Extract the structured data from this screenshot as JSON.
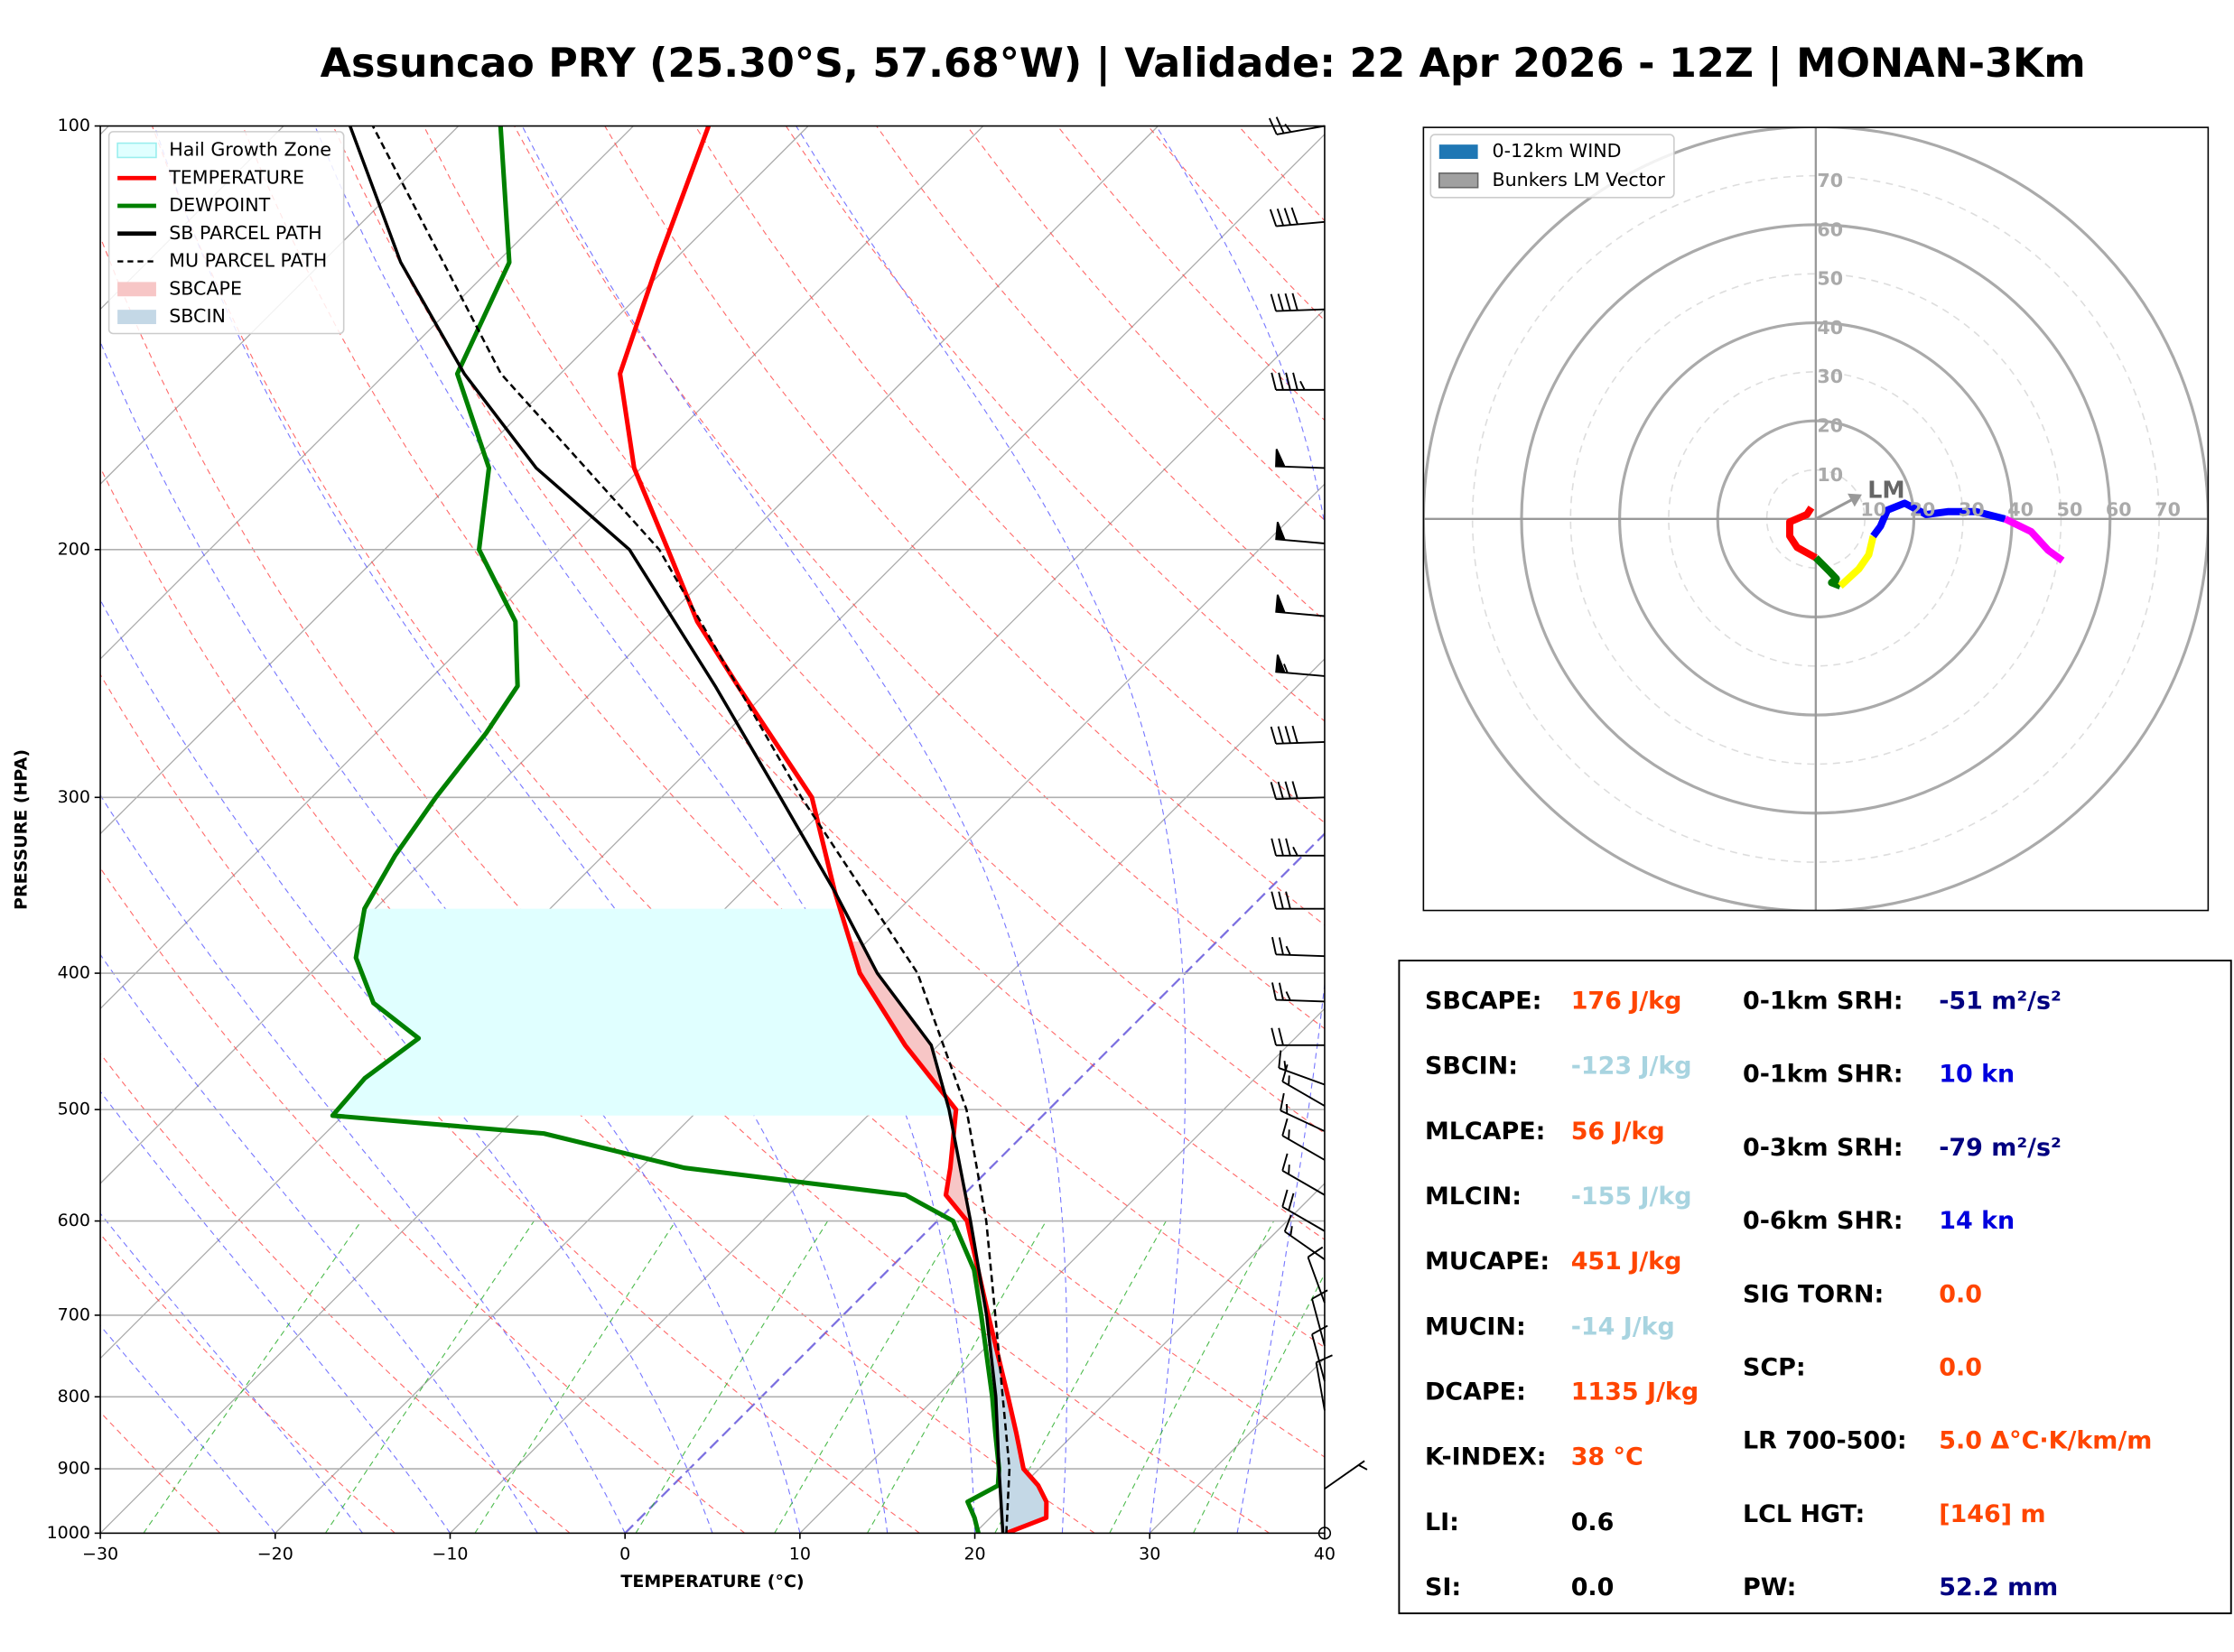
{
  "chart_data": [
    {
      "type": "skewt",
      "title": "Assuncao PRY (25.30°S, 57.68°W) | Validade: 22 Apr 2026 - 12Z | MONAN-3Km",
      "xlabel": "TEMPERATURE (°C)",
      "ylabel": "PRESSURE (HPA)",
      "xlim": [
        -30,
        40
      ],
      "xticks": [
        {
          "value": -30,
          "label": "−30"
        },
        {
          "value": -20,
          "label": "−20"
        },
        {
          "value": -10,
          "label": "−10"
        },
        0,
        10,
        20,
        30,
        40
      ],
      "ylim": [
        1000,
        100
      ],
      "log_y": true,
      "yticks": [
        1000,
        900,
        800,
        700,
        600,
        500,
        400,
        300,
        200,
        100
      ],
      "grid": true,
      "series": [
        {
          "name": "TEMPERATURE",
          "color": "#ff0000",
          "linestyle": "solid",
          "pressure": [
            1000,
            975,
            950,
            925,
            900,
            850,
            800,
            700,
            600,
            575,
            550,
            500,
            450,
            400,
            350,
            300,
            250,
            225,
            200,
            175,
            150,
            125,
            100
          ],
          "values": [
            21.8,
            23.2,
            22.3,
            20.9,
            19.1,
            16.7,
            14.1,
            8.3,
            1.7,
            -1.0,
            -2.3,
            -5.3,
            -11.9,
            -18.6,
            -24.7,
            -31.4,
            -42.0,
            -48.0,
            -53.8,
            -60.4,
            -66.6,
            -70.8,
            -75.7
          ]
        },
        {
          "name": "DEWPOINT",
          "color": "#008000",
          "linestyle": "solid",
          "pressure": [
            1000,
            975,
            950,
            925,
            900,
            850,
            800,
            700,
            650,
            600,
            575,
            550,
            520,
            505,
            475,
            445,
            420,
            390,
            360,
            330,
            300,
            270,
            250,
            225,
            200,
            175,
            150,
            125,
            100
          ],
          "values": [
            20.2,
            19.1,
            17.8,
            18.6,
            17.7,
            15.5,
            13.2,
            7.9,
            4.9,
            0.9,
            -3.3,
            -17.5,
            -27.5,
            -40.6,
            -40.9,
            -40.1,
            -44.7,
            -48.3,
            -50.6,
            -51.9,
            -52.9,
            -53.7,
            -54.6,
            -58.4,
            -64.6,
            -68.7,
            -75.9,
            -79.3,
            -87.6
          ]
        },
        {
          "name": "SB PARCEL PATH",
          "color": "#000000",
          "linestyle": "solid",
          "pressure": [
            1000,
            900,
            800,
            700,
            600,
            500,
            450,
            400,
            350,
            300,
            250,
            200,
            175,
            150,
            125,
            100
          ],
          "values": [
            21.6,
            17.7,
            13.4,
            8.2,
            1.9,
            -5.7,
            -10.4,
            -17.6,
            -24.7,
            -33.2,
            -43.3,
            -56.0,
            -66.0,
            -75.5,
            -85.5,
            -96.2
          ]
        },
        {
          "name": "MU PARCEL PATH",
          "color": "#000000",
          "linestyle": "dashed",
          "pressure": [
            1000,
            900,
            800,
            700,
            600,
            500,
            400,
            300,
            200,
            150,
            100
          ],
          "values": [
            21.8,
            18.3,
            13.8,
            8.7,
            2.8,
            -4.7,
            -15.3,
            -32.0,
            -54.3,
            -73.4,
            -94.9
          ]
        }
      ],
      "hail_zone": {
        "name": "Hail Growth Zone",
        "color": "#e0ffff",
        "plim": [
          505,
          360
        ]
      },
      "sbcape": {
        "name": "SBCAPE",
        "color": "#f7c6c6"
      },
      "sbcin": {
        "name": "SBCIN",
        "color": "#c4d8e6"
      },
      "fill_plim": [
        1000,
        380
      ],
      "winds": {
        "pressure": [
          100,
          117,
          135,
          154,
          175,
          198,
          223,
          246,
          274,
          300,
          330,
          360,
          389,
          419,
          450,
          480,
          497,
          518,
          543,
          575,
          610,
          639,
          686,
          736,
          780,
          818,
          930
        ],
        "direction": [
          260,
          265,
          268,
          270,
          272,
          275,
          275,
          275,
          268,
          268,
          270,
          270,
          272,
          272,
          270,
          290,
          300,
          295,
          300,
          300,
          300,
          305,
          340,
          345,
          345,
          350,
          55
        ],
        "speed": [
          25,
          40,
          40,
          45,
          50,
          50,
          50,
          55,
          40,
          40,
          35,
          30,
          25,
          25,
          20,
          15,
          15,
          15,
          15,
          15,
          20,
          15,
          10,
          10,
          10,
          10,
          5
        ]
      }
    },
    {
      "type": "hodograph",
      "xlim": [
        -80,
        80
      ],
      "rticks": [
        10,
        20,
        30,
        40,
        50,
        60,
        70
      ],
      "legend": [
        {
          "name": "0-12km WIND",
          "color": "#1f77b4"
        },
        {
          "name": "Bunkers LM Vector",
          "color": "#a0a0a0"
        }
      ],
      "segments": [
        {
          "color": "#ff0000",
          "u": [
            -0.9,
            -1.8,
            -5.3,
            -5.3,
            -3.8,
            0
          ],
          "v": [
            2.3,
            0.9,
            -0.6,
            -3.5,
            -5.8,
            -7.9
          ]
        },
        {
          "color": "#007a00",
          "u": [
            0,
            2.9,
            4.2,
            3.2,
            5.0
          ],
          "v": [
            -7.9,
            -10.8,
            -12.2,
            -13.0,
            -13.7
          ]
        },
        {
          "color": "#ffff00",
          "u": [
            5.0,
            8.8,
            10.8,
            11.7
          ],
          "v": [
            -13.7,
            -10.2,
            -7.3,
            -3.5
          ]
        },
        {
          "color": "#0000ff",
          "u": [
            11.7,
            13.2,
            14.6,
            18.1,
            22.5,
            26.9,
            32.7,
            38.6
          ],
          "v": [
            -3.5,
            -1.5,
            1.8,
            3.2,
            0.9,
            1.5,
            1.5,
            0
          ]
        },
        {
          "color": "#ff00ff",
          "u": [
            38.6,
            43.9,
            47.4,
            50.3
          ],
          "v": [
            0,
            -2.6,
            -6.4,
            -8.5
          ]
        }
      ],
      "lm": {
        "label": "LM",
        "u": 9.4,
        "v": 5.0
      }
    }
  ],
  "indices": {
    "left": [
      {
        "label": "SBCAPE:",
        "value": "176 J/kg",
        "color": "#ff4500"
      },
      {
        "label": "SBCIN:",
        "value": "-123 J/kg",
        "color": "#a8d4e0"
      },
      {
        "label": "MLCAPE:",
        "value": "56 J/kg",
        "color": "#ff4500"
      },
      {
        "label": "MLCIN:",
        "value": "-155 J/kg",
        "color": "#a8d4e0"
      },
      {
        "label": "MUCAPE:",
        "value": "451 J/kg",
        "color": "#ff4500"
      },
      {
        "label": "MUCIN:",
        "value": "-14 J/kg",
        "color": "#a8d4e0"
      },
      {
        "label": "DCAPE:",
        "value": "1135 J/kg",
        "color": "#ff4500"
      },
      {
        "label": "K-INDEX:",
        "value": "38 °C",
        "color": "#ff4500"
      },
      {
        "label": "LI:",
        "value": "0.6",
        "color": "#000000"
      },
      {
        "label": "SI:",
        "value": "0.0",
        "color": "#000000"
      }
    ],
    "right": [
      {
        "label": "0-1km SRH:",
        "value": "-51 m²/s²",
        "color": "#000080"
      },
      {
        "label": "0-1km SHR:",
        "value": "10 kn",
        "color": "#0000dd"
      },
      {
        "label": "0-3km SRH:",
        "value": "-79 m²/s²",
        "color": "#000080"
      },
      {
        "label": "0-6km SHR:",
        "value": "14 kn",
        "color": "#0000dd"
      },
      {
        "label": "SIG TORN:",
        "value": "0.0",
        "color": "#ff4500"
      },
      {
        "label": "SCP:",
        "value": "0.0",
        "color": "#ff4500"
      },
      {
        "label": "LR 700-500:",
        "value": "5.0 Δ°C·K/km/m",
        "color": "#ff4500"
      },
      {
        "label": "LCL HGT:",
        "value": "[146] m",
        "color": "#ff4500"
      },
      {
        "label": "PW:",
        "value": "52.2 mm",
        "color": "#000080"
      }
    ]
  }
}
